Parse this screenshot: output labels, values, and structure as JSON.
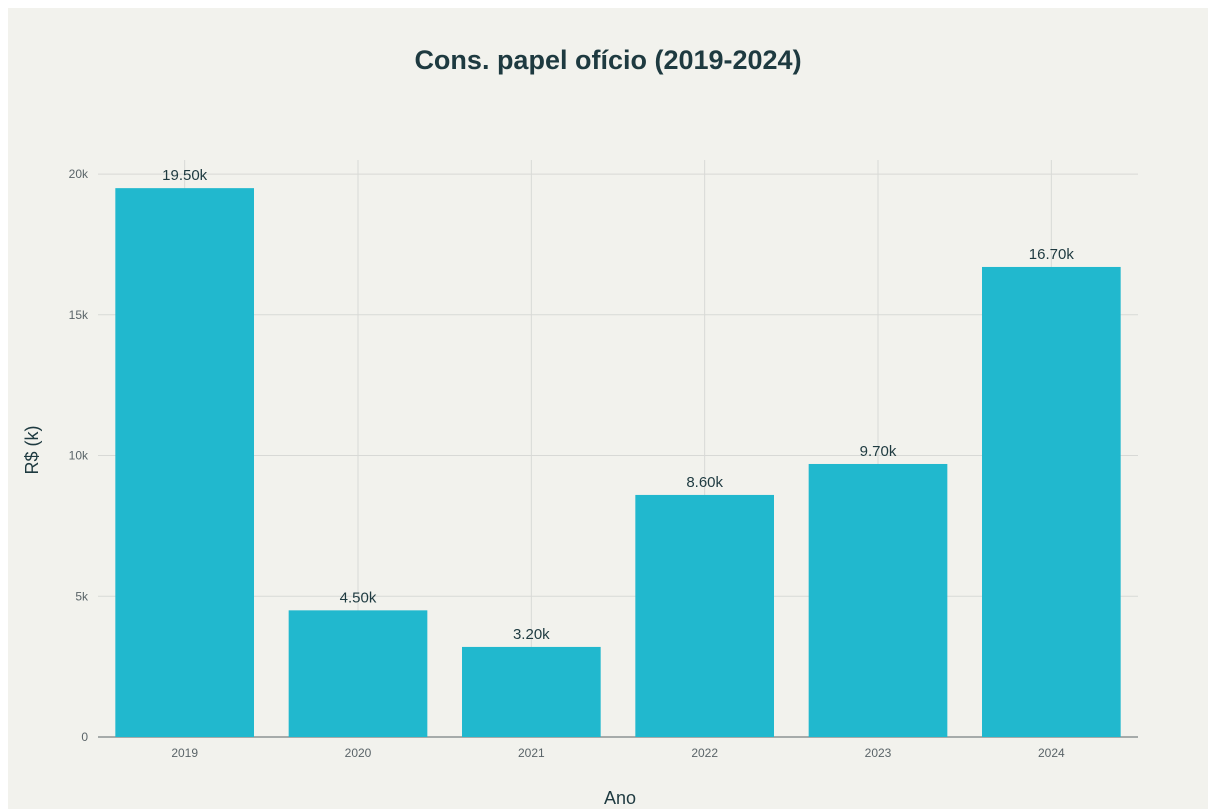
{
  "chart_data": {
    "type": "bar",
    "title": "Cons. papel ofício (2019-2024)",
    "xlabel": "Ano",
    "ylabel": "R$ (k)",
    "categories": [
      "2019",
      "2020",
      "2021",
      "2022",
      "2023",
      "2024"
    ],
    "values": [
      19500,
      4500,
      3200,
      8600,
      9700,
      16700
    ],
    "data_labels": [
      "19.50k",
      "4.50k",
      "3.20k",
      "8.60k",
      "9.70k",
      "16.70k"
    ],
    "ylim": [
      0,
      20500
    ],
    "y_ticks": [
      0,
      5000,
      10000,
      15000,
      20000
    ],
    "y_tick_labels": [
      "0",
      "5k",
      "10k",
      "15k",
      "20k"
    ],
    "grid": true,
    "bar_color": "#21b8ce",
    "background_color": "#f2f2ed"
  }
}
